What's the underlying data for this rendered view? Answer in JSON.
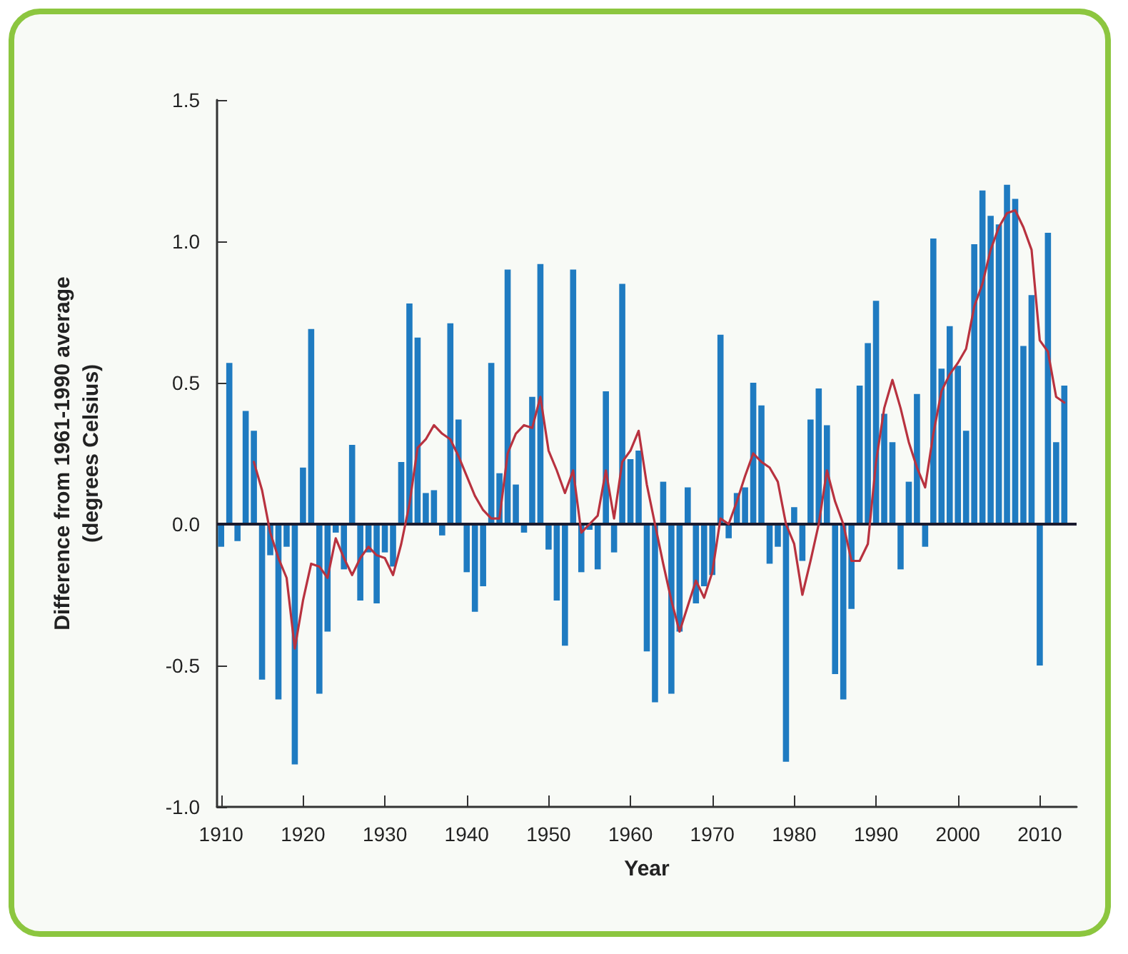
{
  "chart_data": {
    "type": "bar",
    "xlabel": "Year",
    "ylabel": "Difference from 1961-1990 average\n(degrees Celsius)",
    "x": [
      1910,
      1911,
      1912,
      1913,
      1914,
      1915,
      1916,
      1917,
      1918,
      1919,
      1920,
      1921,
      1922,
      1923,
      1924,
      1925,
      1926,
      1927,
      1928,
      1929,
      1930,
      1931,
      1932,
      1933,
      1934,
      1935,
      1936,
      1937,
      1938,
      1939,
      1940,
      1941,
      1942,
      1943,
      1944,
      1945,
      1946,
      1947,
      1948,
      1949,
      1950,
      1951,
      1952,
      1953,
      1954,
      1955,
      1956,
      1957,
      1958,
      1959,
      1960,
      1961,
      1962,
      1963,
      1964,
      1965,
      1966,
      1967,
      1968,
      1969,
      1970,
      1971,
      1972,
      1973,
      1974,
      1975,
      1976,
      1977,
      1978,
      1979,
      1980,
      1981,
      1982,
      1983,
      1984,
      1985,
      1986,
      1987,
      1988,
      1989,
      1990,
      1991,
      1992,
      1993,
      1994,
      1995,
      1996,
      1997,
      1998,
      1999,
      2000,
      2001,
      2002,
      2003,
      2004,
      2005,
      2006,
      2007,
      2008,
      2009,
      2010,
      2011,
      2012,
      2013
    ],
    "series": [
      {
        "color": "#1f7bc1",
        "values": [
          -0.08,
          0.57,
          -0.06,
          0.4,
          0.33,
          -0.55,
          -0.11,
          -0.62,
          -0.08,
          -0.85,
          0.2,
          0.69,
          -0.6,
          -0.38,
          -0.03,
          -0.16,
          0.28,
          -0.27,
          -0.1,
          -0.28,
          -0.1,
          -0.15,
          0.22,
          0.78,
          0.66,
          0.11,
          0.12,
          -0.04,
          0.71,
          0.37,
          -0.17,
          -0.31,
          -0.22,
          0.57,
          0.18,
          0.9,
          0.14,
          -0.03,
          0.45,
          0.92,
          -0.09,
          -0.27,
          -0.43,
          0.9,
          -0.17,
          -0.02,
          -0.16,
          0.47,
          -0.1,
          0.85,
          0.23,
          0.26,
          -0.45,
          -0.63,
          0.15,
          -0.6,
          -0.38,
          0.13,
          -0.28,
          -0.22,
          -0.18,
          0.67,
          -0.05,
          0.11,
          0.13,
          0.5,
          0.42,
          -0.14,
          -0.08,
          -0.84,
          0.06,
          -0.13,
          0.37,
          0.48,
          0.35,
          -0.53,
          -0.62,
          -0.3,
          0.49,
          0.64,
          0.79,
          0.39,
          0.29,
          -0.16,
          0.15,
          0.46,
          -0.08,
          1.01,
          0.55,
          0.7,
          0.56,
          0.33,
          0.99,
          1.18,
          1.09,
          1.06,
          1.2,
          1.15,
          0.63,
          0.81,
          -0.5,
          1.03,
          0.29,
          0.49
        ]
      },
      {
        "type": "line",
        "color": "#b8323f",
        "x": [
          1914,
          1915,
          1916,
          1917,
          1918,
          1919,
          1920,
          1921,
          1922,
          1923,
          1924,
          1925,
          1926,
          1927,
          1928,
          1929,
          1930,
          1931,
          1932,
          1933,
          1934,
          1935,
          1936,
          1937,
          1938,
          1939,
          1940,
          1941,
          1942,
          1943,
          1944,
          1945,
          1946,
          1947,
          1948,
          1949,
          1950,
          1951,
          1952,
          1953,
          1954,
          1955,
          1956,
          1957,
          1958,
          1959,
          1960,
          1961,
          1962,
          1963,
          1964,
          1965,
          1966,
          1967,
          1968,
          1969,
          1970,
          1971,
          1972,
          1973,
          1974,
          1975,
          1976,
          1977,
          1978,
          1979,
          1980,
          1981,
          1982,
          1983,
          1984,
          1985,
          1986,
          1987,
          1988,
          1989,
          1990,
          1991,
          1992,
          1993,
          1994,
          1995,
          1996,
          1997,
          1998,
          1999,
          2000,
          2001,
          2002,
          2003,
          2004,
          2005,
          2006,
          2007,
          2008,
          2009,
          2010,
          2011,
          2012,
          2013
        ],
        "values": [
          0.22,
          0.12,
          -0.03,
          -0.12,
          -0.19,
          -0.44,
          -0.27,
          -0.14,
          -0.15,
          -0.19,
          -0.05,
          -0.12,
          -0.18,
          -0.12,
          -0.08,
          -0.11,
          -0.12,
          -0.18,
          -0.07,
          0.07,
          0.27,
          0.3,
          0.35,
          0.32,
          0.3,
          0.24,
          0.17,
          0.1,
          0.05,
          0.02,
          0.02,
          0.25,
          0.32,
          0.35,
          0.34,
          0.45,
          0.26,
          0.19,
          0.11,
          0.19,
          -0.03,
          0.0,
          0.03,
          0.19,
          0.02,
          0.22,
          0.26,
          0.33,
          0.14,
          0.0,
          -0.14,
          -0.27,
          -0.38,
          -0.29,
          -0.2,
          -0.26,
          -0.17,
          0.02,
          0.0,
          0.08,
          0.17,
          0.25,
          0.22,
          0.2,
          0.15,
          0.0,
          -0.07,
          -0.25,
          -0.13,
          0.0,
          0.19,
          0.08,
          0.0,
          -0.13,
          -0.13,
          -0.07,
          0.22,
          0.41,
          0.51,
          0.41,
          0.29,
          0.2,
          0.13,
          0.32,
          0.47,
          0.53,
          0.57,
          0.62,
          0.77,
          0.85,
          0.97,
          1.05,
          1.1,
          1.11,
          1.05,
          0.97,
          0.65,
          0.61,
          0.45,
          0.43
        ]
      }
    ],
    "xlim": [
      1909.5,
      2014.5
    ],
    "xticks": [
      1910,
      1920,
      1930,
      1940,
      1950,
      1960,
      1970,
      1980,
      1990,
      2000,
      2010
    ],
    "ylim": [
      -1,
      1.5
    ],
    "yticks": [
      {
        "value": -1,
        "label": "-1.0"
      },
      {
        "value": -0.5,
        "label": "-0.5"
      },
      {
        "value": 0,
        "label": "0.0"
      },
      {
        "value": 0.5,
        "label": "0.5"
      },
      {
        "value": 1,
        "label": "1.0"
      },
      {
        "value": 1.5,
        "label": "1.5"
      }
    ],
    "ref_lines": [
      {
        "axis": "y",
        "value": 0,
        "color": "#1a1a2e"
      }
    ],
    "grid": false,
    "marker": "none",
    "line_style": "solid"
  }
}
